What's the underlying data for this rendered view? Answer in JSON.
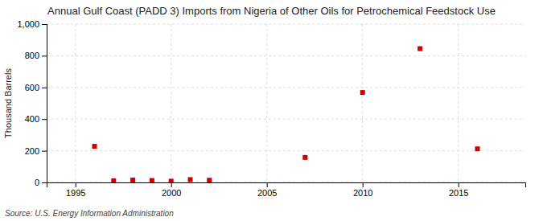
{
  "chart_data": {
    "type": "scatter",
    "title": "Annual Gulf Coast (PADD 3) Imports from Nigeria of Other Oils for Petrochemical Feedstock Use",
    "ylabel": "Thousand Barrels",
    "source": "Source: U.S. Energy Information Administration",
    "x": [
      1996,
      1997,
      1998,
      1999,
      2000,
      2001,
      2002,
      2007,
      2010,
      2013,
      2016
    ],
    "values": [
      228,
      10,
      15,
      12,
      8,
      18,
      14,
      158,
      568,
      845,
      212
    ],
    "color": "#cc0000",
    "marker": "square",
    "xlim": [
      1993.5,
      2018.5
    ],
    "ylim": [
      0,
      1000
    ],
    "xticks": [
      1995,
      2000,
      2005,
      2010,
      2015
    ],
    "yticks": [
      0,
      200,
      400,
      600,
      800,
      {
        "value": 1000,
        "label": "1,000"
      }
    ],
    "grid": true
  }
}
